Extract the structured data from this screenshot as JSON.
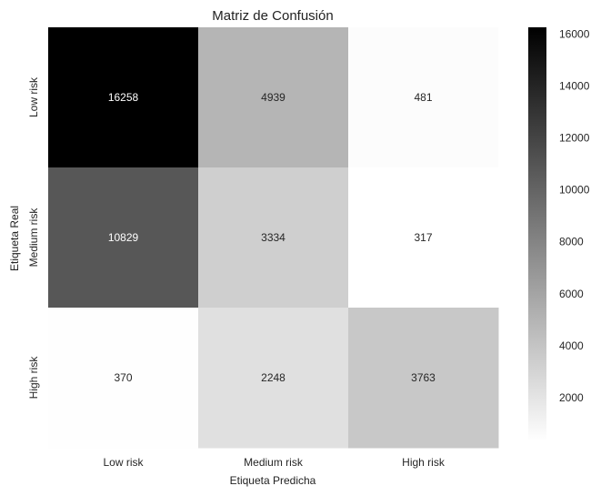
{
  "chart_data": {
    "type": "heatmap",
    "title": "Matriz de Confusión",
    "xlabel": "Etiqueta Predicha",
    "ylabel": "Etiqueta Real",
    "x_categories": [
      "Low risk",
      "Medium risk",
      "High risk"
    ],
    "y_categories": [
      "Low risk",
      "Medium risk",
      "High risk"
    ],
    "values": [
      [
        16258,
        4939,
        481
      ],
      [
        10829,
        3334,
        317
      ],
      [
        370,
        2248,
        3763
      ]
    ],
    "colormap": "Greys",
    "color_min": 317,
    "color_max": 16258,
    "colorbar_ticks": [
      2000,
      4000,
      6000,
      8000,
      10000,
      12000,
      14000,
      16000
    ]
  }
}
